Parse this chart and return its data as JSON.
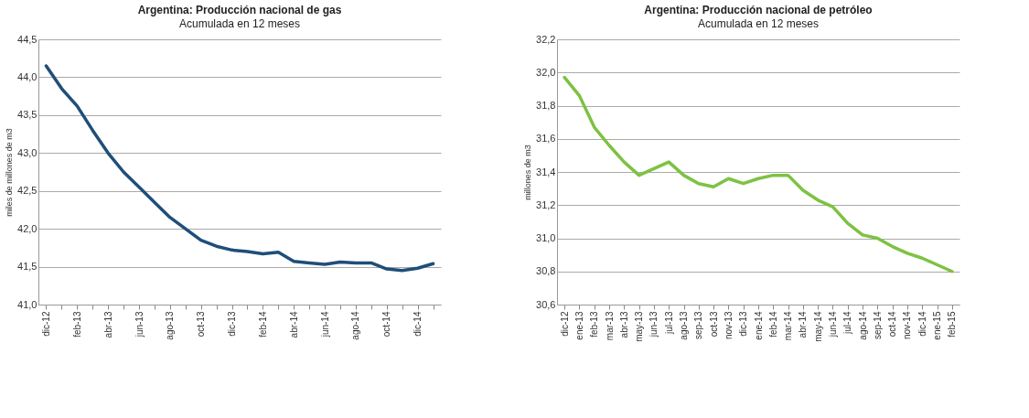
{
  "chart_data": [
    {
      "type": "line",
      "title": "Argentina: Producción nacional de gas",
      "subtitle": "Acumulada en 12 meses",
      "ylabel": "miles de millones de m3",
      "categories": [
        "dic-12",
        null,
        "feb-13",
        null,
        "abr-13",
        null,
        "jun-13",
        null,
        "ago-13",
        null,
        "oct-13",
        null,
        "dic-13",
        null,
        "feb-14",
        null,
        "abr-14",
        null,
        "jun-14",
        null,
        "ago-14",
        null,
        "oct-14",
        null,
        "dic-14",
        null
      ],
      "series": [
        {
          "color": "#1f4e79",
          "values": [
            44.15,
            43.85,
            43.62,
            43.3,
            43.0,
            42.75,
            42.55,
            42.35,
            42.15,
            42.0,
            41.85,
            41.77,
            41.72,
            41.7,
            41.67,
            41.69,
            41.57,
            41.55,
            41.53,
            41.56,
            41.55,
            41.55,
            41.47,
            41.45,
            41.48,
            41.54
          ]
        }
      ],
      "ylim": [
        41.0,
        44.5
      ],
      "yticks": [
        {
          "value": 41.0,
          "label": "41,0"
        },
        {
          "value": 41.5,
          "label": "41,5"
        },
        {
          "value": 42.0,
          "label": "42,0"
        },
        {
          "value": 42.5,
          "label": "42,5"
        },
        {
          "value": 43.0,
          "label": "43,0"
        },
        {
          "value": 43.5,
          "label": "43,5"
        },
        {
          "value": 44.0,
          "label": "44,0"
        },
        {
          "value": 44.5,
          "label": "44,5"
        }
      ],
      "grid": "y",
      "line_style": "solid",
      "marker": "none"
    },
    {
      "type": "line",
      "title": "Argentina: Producción nacional de petróleo",
      "subtitle": "Acumulada en 12 meses",
      "ylabel": "millones de m3",
      "categories": [
        "dic-12",
        "ene-13",
        "feb-13",
        "mar-13",
        "abr-13",
        "may-13",
        "jun-13",
        "jul-13",
        "ago-13",
        "sep-13",
        "oct-13",
        "nov-13",
        "dic-13",
        "ene-14",
        "feb-14",
        "mar-14",
        "abr-14",
        "may-14",
        "jun-14",
        "jul-14",
        "ago-14",
        "sep-14",
        "oct-14",
        "nov-14",
        "dic-14",
        "ene-15",
        "feb-15"
      ],
      "series": [
        {
          "color": "#7dc242",
          "values": [
            31.97,
            31.86,
            31.67,
            31.56,
            31.46,
            31.38,
            31.42,
            31.46,
            31.38,
            31.33,
            31.31,
            31.36,
            31.33,
            31.36,
            31.38,
            31.38,
            31.29,
            31.23,
            31.19,
            31.09,
            31.02,
            31.0,
            30.95,
            30.91,
            30.88,
            30.84,
            30.8
          ]
        }
      ],
      "ylim": [
        30.6,
        32.2
      ],
      "yticks": [
        {
          "value": 30.6,
          "label": "30,6"
        },
        {
          "value": 30.8,
          "label": "30,8"
        },
        {
          "value": 31.0,
          "label": "31,0"
        },
        {
          "value": 31.2,
          "label": "31,2"
        },
        {
          "value": 31.4,
          "label": "31,4"
        },
        {
          "value": 31.6,
          "label": "31,6"
        },
        {
          "value": 31.8,
          "label": "31,8"
        },
        {
          "value": 32.0,
          "label": "32,0"
        },
        {
          "value": 32.2,
          "label": "32,2"
        }
      ],
      "grid": "y",
      "line_style": "solid",
      "marker": "none"
    }
  ]
}
